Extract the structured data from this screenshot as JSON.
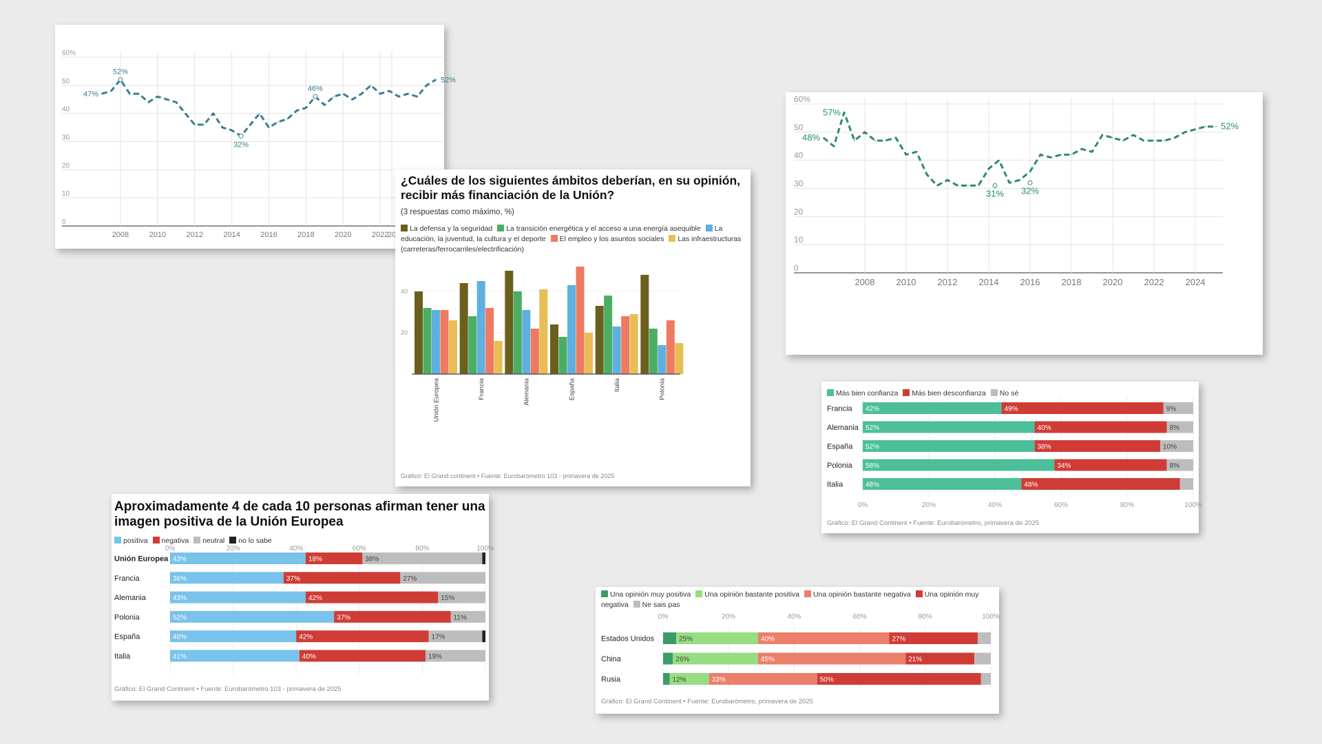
{
  "colors": {
    "line_blue": "#3a7e91",
    "line_green": "#2f8a6c",
    "grid": "#e3e3e3",
    "olive": "#6b5f1e",
    "green": "#4cae63",
    "blue": "#5fb0df",
    "salmon": "#ee7a62",
    "yellow": "#e9bd55",
    "teal": "#4cbf9a",
    "red": "#cf3c36",
    "gray": "#bdbdbd",
    "lightblue": "#78c2eb",
    "black": "#222222",
    "darkgreen": "#3d9a6b",
    "lightgreen": "#97dd82",
    "salmon2": "#ec7f6a"
  },
  "chart_data": [
    {
      "id": "line1",
      "type": "line",
      "ylim": [
        0,
        60
      ],
      "yticks": [
        "0",
        "10",
        "20",
        "30",
        "40",
        "50",
        "60%"
      ],
      "xticks": [
        "2008",
        "2010",
        "2012",
        "2014",
        "2016",
        "2018",
        "2020",
        "2022",
        "20"
      ],
      "x": [
        2007.0,
        2007.5,
        2008.0,
        2008.5,
        2009.0,
        2009.5,
        2010.0,
        2010.5,
        2011.0,
        2011.5,
        2012.0,
        2012.5,
        2013.0,
        2013.5,
        2014.0,
        2014.5,
        2015.0,
        2015.5,
        2016.0,
        2016.5,
        2017.0,
        2017.5,
        2018.0,
        2018.5,
        2019.0,
        2019.5,
        2020.0,
        2020.5,
        2021.0,
        2021.5,
        2022.0,
        2022.5,
        2023.0,
        2023.5,
        2024.0,
        2024.5,
        2025.0
      ],
      "y": [
        47,
        48,
        52,
        47,
        47,
        44,
        46,
        45,
        44,
        40,
        36,
        36,
        40,
        35,
        34,
        32,
        36,
        40,
        35,
        37,
        38,
        41,
        42,
        46,
        43,
        46,
        47,
        45,
        47,
        50,
        47,
        48,
        46,
        47,
        46,
        50,
        52
      ],
      "labels": [
        {
          "text": "47%",
          "x": 2007.0,
          "y": 47,
          "pos": "left"
        },
        {
          "text": "52%",
          "x": 2008.0,
          "y": 52,
          "pos": "above"
        },
        {
          "text": "32%",
          "x": 2014.5,
          "y": 32,
          "pos": "below"
        },
        {
          "text": "46%",
          "x": 2018.5,
          "y": 46,
          "pos": "above"
        },
        {
          "text": "52%",
          "x": 2025.0,
          "y": 52,
          "pos": "right"
        }
      ]
    },
    {
      "id": "bars",
      "type": "bar",
      "title": "¿Cuáles de los siguientes ámbitos deberían, en su opinión, recibir más financiación de la Unión?",
      "subtitle": "(3 respuestas como máximo, %)",
      "source": "Gráfico: El Grand continent • Fuente: Eurobarómetro 103 - primavera de 2025",
      "ylim": [
        0,
        50
      ],
      "yticks": [
        "20",
        "40"
      ],
      "categories": [
        "Unión Europea",
        "Francia",
        "Alemania",
        "España",
        "Italia",
        "Polonia"
      ],
      "series": [
        {
          "name": "La defensa y la seguridad",
          "color": "olive",
          "values": [
            40,
            44,
            50,
            24,
            33,
            48
          ]
        },
        {
          "name": "La transición energética y el acceso a una energía asequible",
          "color": "green",
          "values": [
            32,
            28,
            40,
            18,
            38,
            22
          ]
        },
        {
          "name": "La educación, la juventud, la cultura y el deporte",
          "color": "blue",
          "values": [
            31,
            45,
            31,
            43,
            23,
            14
          ]
        },
        {
          "name": "El empleo y los asuntos sociales",
          "color": "salmon",
          "values": [
            31,
            32,
            22,
            52,
            28,
            26
          ]
        },
        {
          "name": "Las infraestructuras (carreteras/ferrocarriles/electrificación)",
          "color": "yellow",
          "values": [
            26,
            16,
            41,
            20,
            29,
            15
          ]
        }
      ]
    },
    {
      "id": "line2",
      "type": "line",
      "ylim": [
        0,
        60
      ],
      "yticks": [
        "0",
        "10",
        "20",
        "30",
        "40",
        "50",
        "60%"
      ],
      "xticks": [
        "2008",
        "2010",
        "2012",
        "2014",
        "2016",
        "2018",
        "2020",
        "2022",
        "2024"
      ],
      "x": [
        2006.0,
        2006.5,
        2007.0,
        2007.5,
        2008.0,
        2008.5,
        2009.0,
        2009.5,
        2010.0,
        2010.5,
        2011.0,
        2011.5,
        2012.0,
        2012.5,
        2013.0,
        2013.5,
        2014.0,
        2014.5,
        2015.0,
        2015.5,
        2016.0,
        2016.5,
        2017.0,
        2017.5,
        2018.0,
        2018.5,
        2019.0,
        2019.5,
        2020.0,
        2020.5,
        2021.0,
        2021.5,
        2022.0,
        2022.5,
        2023.0,
        2023.5,
        2024.0,
        2024.5,
        2025.0
      ],
      "y": [
        48,
        45,
        57,
        47,
        50,
        47,
        47,
        48,
        42,
        43,
        35,
        31,
        33,
        31,
        31,
        31,
        37,
        40,
        32,
        33,
        36,
        42,
        41,
        42,
        42,
        44,
        43,
        49,
        48,
        47,
        49,
        47,
        47,
        47,
        48,
        50,
        51,
        52,
        52
      ],
      "labels": [
        {
          "text": "48%",
          "x": 2006.0,
          "y": 48,
          "pos": "left"
        },
        {
          "text": "57%",
          "x": 2007.0,
          "y": 57,
          "pos": "left"
        },
        {
          "text": "31%",
          "x": 2014.3,
          "y": 31,
          "pos": "below"
        },
        {
          "text": "32%",
          "x": 2016.0,
          "y": 32,
          "pos": "below"
        },
        {
          "text": "52%",
          "x": 2025.0,
          "y": 52,
          "pos": "right"
        }
      ]
    },
    {
      "id": "trust",
      "type": "bar",
      "orientation": "horizontal-stacked",
      "source": "Gráfico: El Grand Continent • Fuente: Eurobarómetro, primavera de 2025",
      "xticks": [
        "0%",
        "20%",
        "40%",
        "60%",
        "80%",
        "100%"
      ],
      "categories": [
        "Francia",
        "Alemania",
        "España",
        "Polonia",
        "Italia"
      ],
      "series": [
        {
          "name": "Más bien confianza",
          "color": "teal",
          "values": [
            42,
            52,
            52,
            58,
            48
          ],
          "labels": [
            "42%",
            "52%",
            "52%",
            "58%",
            "48%"
          ]
        },
        {
          "name": "Más bien desconfianza",
          "color": "red",
          "values": [
            49,
            40,
            38,
            34,
            48
          ],
          "labels": [
            "49%",
            "40%",
            "38%",
            "34%",
            "48%"
          ]
        },
        {
          "name": "No sé",
          "color": "gray",
          "values": [
            9,
            8,
            10,
            8,
            4
          ],
          "labels": [
            "9%",
            "8%",
            "10%",
            "8%",
            ""
          ]
        }
      ]
    },
    {
      "id": "image",
      "type": "bar",
      "orientation": "horizontal-stacked",
      "title": "Aproximadamente 4 de cada 10 personas afirman tener una imagen positiva de la Unión Europea",
      "source": "Gráfico: El Grand Continent • Fuente: Eurobarómetro 103 - primavera de 2025",
      "xticks": [
        "0%",
        "20%",
        "40%",
        "60%",
        "80%",
        "100%"
      ],
      "categories": [
        "Unión Europea",
        "Francia",
        "Alemania",
        "Polonia",
        "España",
        "Italia"
      ],
      "bold_first": true,
      "series": [
        {
          "name": "positiva",
          "color": "lightblue",
          "values": [
            43,
            36,
            43,
            52,
            40,
            41
          ],
          "labels": [
            "43%",
            "36%",
            "43%",
            "52%",
            "40%",
            "41%"
          ]
        },
        {
          "name": "negativa",
          "color": "red",
          "values": [
            18,
            37,
            42,
            37,
            42,
            40
          ],
          "labels": [
            "18%",
            "37%",
            "42%",
            "37%",
            "42%",
            "40%"
          ]
        },
        {
          "name": "neutral",
          "color": "gray",
          "values": [
            38,
            27,
            15,
            11,
            17,
            19
          ],
          "labels": [
            "38%",
            "27%",
            "15%",
            "11%",
            "17%",
            "19%"
          ]
        },
        {
          "name": "no lo sabe",
          "color": "black",
          "values": [
            1,
            0,
            0,
            0,
            1,
            0
          ],
          "labels": [
            "",
            "",
            "",
            "",
            "",
            ""
          ]
        }
      ]
    },
    {
      "id": "opinion",
      "type": "bar",
      "orientation": "horizontal-stacked",
      "source": "Gráfico: El Grand Continent • Fuente: Eurobarómetro, primavera de 2025",
      "xticks": [
        "0%",
        "20%",
        "40%",
        "60%",
        "80%",
        "100%"
      ],
      "categories": [
        "Estados Unidos",
        "China",
        "Rusia"
      ],
      "series": [
        {
          "name": "Una opinión muy positiva",
          "color": "darkgreen",
          "values": [
            4,
            3,
            2
          ],
          "labels": [
            "",
            "",
            ""
          ]
        },
        {
          "name": "Una opinión bastante positiva",
          "color": "lightgreen",
          "values": [
            25,
            26,
            12
          ],
          "labels": [
            "25%",
            "26%",
            "12%"
          ]
        },
        {
          "name": "Una opinión bastante negativa",
          "color": "salmon2",
          "values": [
            40,
            45,
            33
          ],
          "labels": [
            "40%",
            "45%",
            "33%"
          ]
        },
        {
          "name": "Una opinión muy negativa",
          "color": "red",
          "values": [
            27,
            21,
            50
          ],
          "labels": [
            "27%",
            "21%",
            "50%"
          ]
        },
        {
          "name": "Ne sais pas",
          "color": "gray",
          "values": [
            4,
            5,
            3
          ],
          "labels": [
            "",
            "",
            ""
          ]
        }
      ]
    }
  ]
}
